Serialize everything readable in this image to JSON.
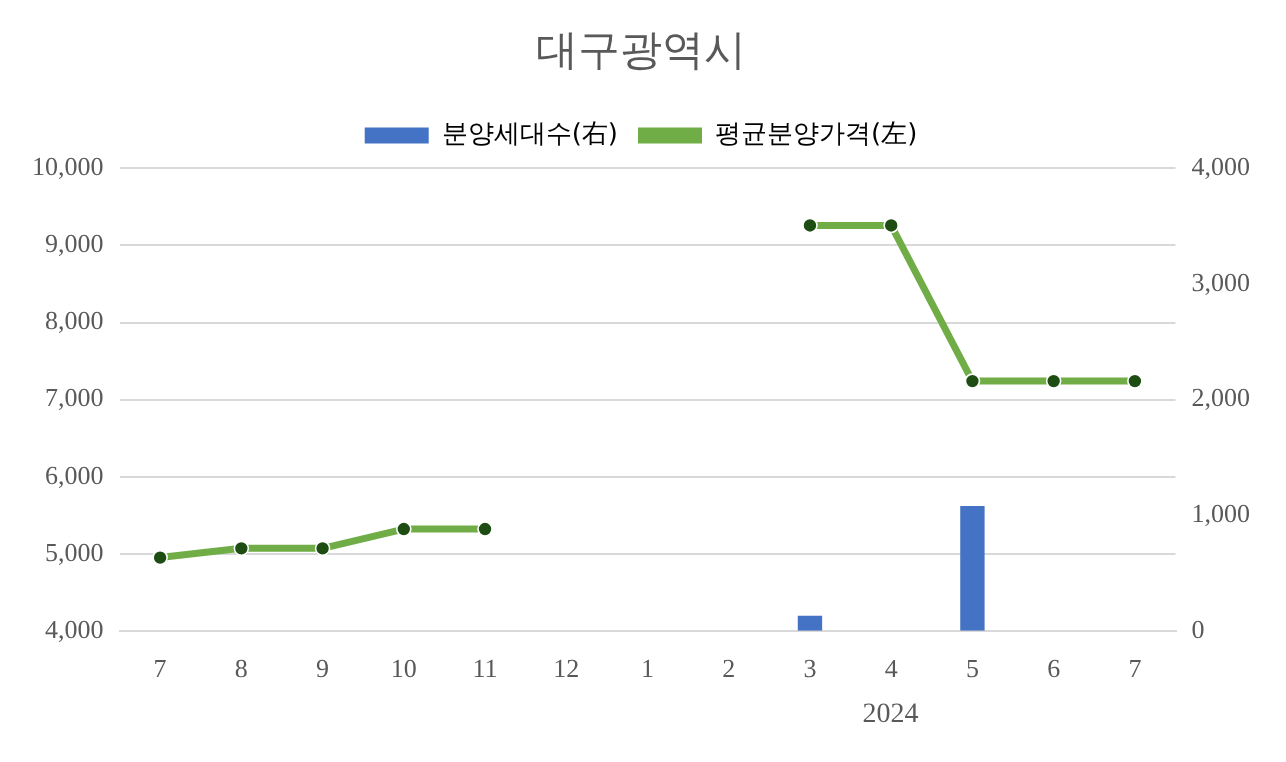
{
  "chart_data": {
    "type": "bar",
    "title": "대구광역시",
    "categories": [
      "7",
      "8",
      "9",
      "10",
      "11",
      "12",
      "1",
      "2",
      "3",
      "4",
      "5",
      "6",
      "7"
    ],
    "series": [
      {
        "name": "분양세대수(右)",
        "axis": "y2",
        "color": "#4472c4",
        "values": [
          0,
          0,
          0,
          0,
          0,
          0,
          0,
          0,
          130,
          0,
          1080,
          0,
          0
        ]
      },
      {
        "name": "평균분양가격(左)",
        "type": "line",
        "color": "#70ad47",
        "marker": "circle",
        "values": [
          4950,
          5070,
          5070,
          5320,
          5320,
          null,
          null,
          null,
          9260,
          9260,
          7240,
          7240,
          7240
        ]
      }
    ],
    "ylim": [
      4000,
      10000
    ],
    "yticks": [
      {
        "value": 4000,
        "label": "4,000"
      },
      {
        "value": 5000,
        "label": "5,000"
      },
      {
        "value": 6000,
        "label": "6,000"
      },
      {
        "value": 7000,
        "label": "7,000"
      },
      {
        "value": 8000,
        "label": "8,000"
      },
      {
        "value": 9000,
        "label": "9,000"
      },
      {
        "value": 10000,
        "label": "10,000"
      }
    ],
    "y2lim": [
      0,
      4000
    ],
    "y2ticks": [
      0,
      {
        "value": 1000,
        "label": "1,000"
      },
      {
        "value": 2000,
        "label": "2,000"
      },
      {
        "value": 3000,
        "label": "3,000"
      },
      {
        "value": 4000,
        "label": "4,000"
      }
    ],
    "grid": "y",
    "legend": "top",
    "annotations": [
      "2024"
    ]
  }
}
